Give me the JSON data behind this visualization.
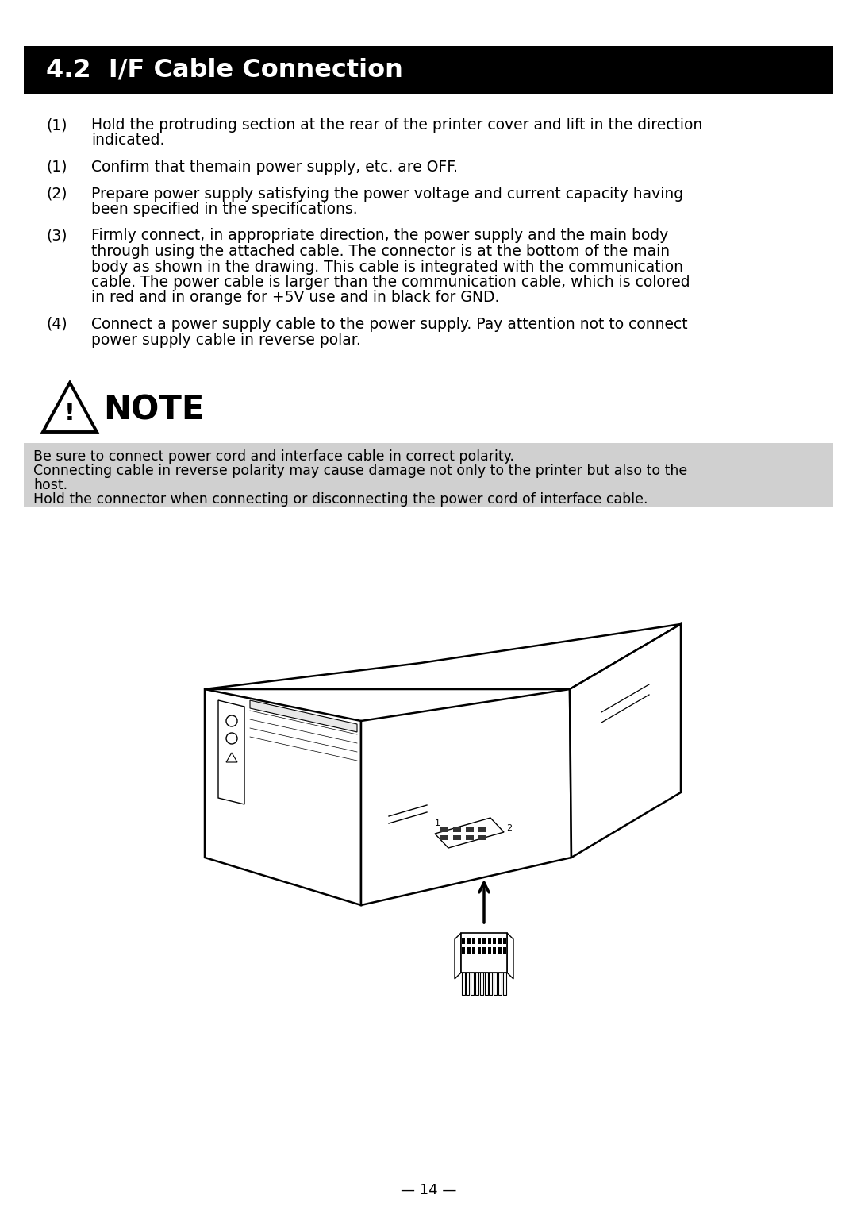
{
  "title": "4.2  I/F Cable Connection",
  "title_bg": "#000000",
  "title_fg": "#ffffff",
  "page_bg": "#ffffff",
  "body_items": [
    {
      "num": "(1)",
      "text": "Hold the protruding section at the rear of the printer cover and lift in the direction\n        indicated."
    },
    {
      "num": "(1)",
      "text": "Confirm that themain power supply, etc. are OFF."
    },
    {
      "num": "(2)",
      "text": "Prepare power supply satisfying the power voltage and current capacity having\n        been specified in the specifications."
    },
    {
      "num": "(3)",
      "text": "Firmly connect, in appropriate direction, the power supply and the main body\n        through using the attached cable. The connector is at the bottom of the main\n        body as shown in the drawing. This cable is integrated with the communication\n        cable. The power cable is larger than the communication cable, which is colored\n        in red and in orange for +5V use and in black for GND."
    },
    {
      "num": "(4)",
      "text": "Connect a power supply cable to the power supply. Pay attention not to connect\n        power supply cable in reverse polar."
    }
  ],
  "note_lines": [
    "Be sure to connect power cord and interface cable in correct polarity.",
    "Connecting cable in reverse polarity may cause damage not only to the printer but also to the",
    "host.",
    "Hold the connector when connecting or disconnecting the power cord of interface cable."
  ],
  "note_bg": "#d0d0d0",
  "page_number": "— 14 —",
  "body_fontsize": 13.5,
  "note_fontsize": 12.5
}
